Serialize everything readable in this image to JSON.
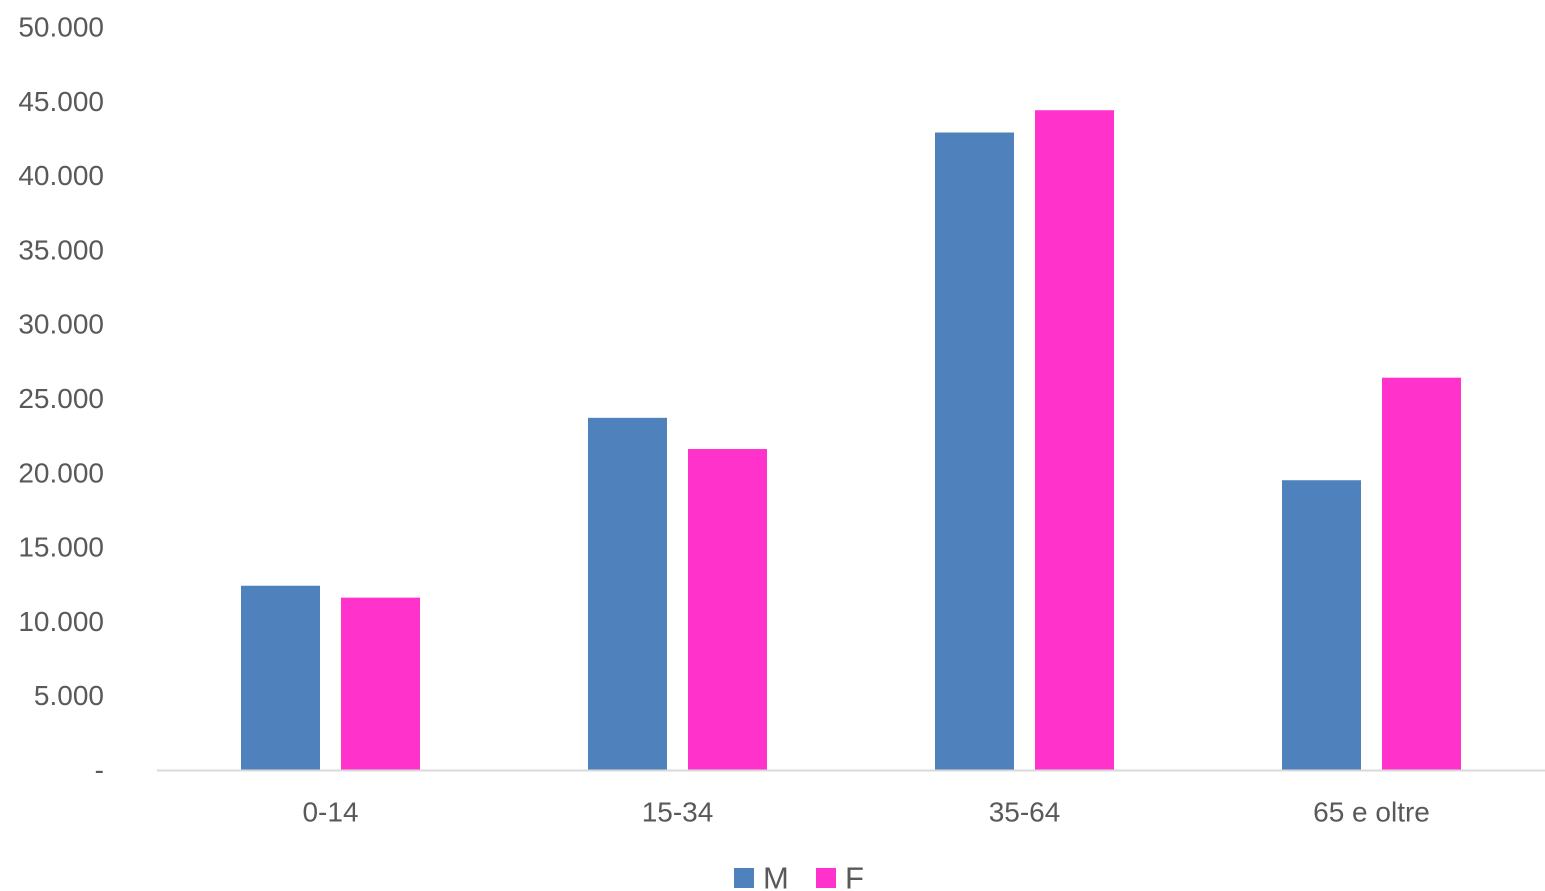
{
  "chart_data": {
    "type": "bar",
    "categories": [
      "0-14",
      "15-34",
      "35-64",
      "65 e oltre"
    ],
    "series": [
      {
        "name": "M",
        "color": "#4F81BD",
        "values": [
          12400,
          23700,
          42900,
          19500
        ]
      },
      {
        "name": "F",
        "color": "#FF33CC",
        "values": [
          11600,
          21600,
          44400,
          26400
        ]
      }
    ],
    "ylim": [
      0,
      50000
    ],
    "yticks": [
      0,
      5000,
      10000,
      15000,
      20000,
      25000,
      30000,
      35000,
      40000,
      45000,
      50000
    ],
    "ytick_labels": [
      "-",
      "5.000",
      "10.000",
      "15.000",
      "20.000",
      "25.000",
      "30.000",
      "35.000",
      "40.000",
      "45.000",
      "50.000"
    ],
    "grid": false,
    "legend": "bottom",
    "axis_color": "#D9D9D9",
    "text_color": "#595959"
  }
}
